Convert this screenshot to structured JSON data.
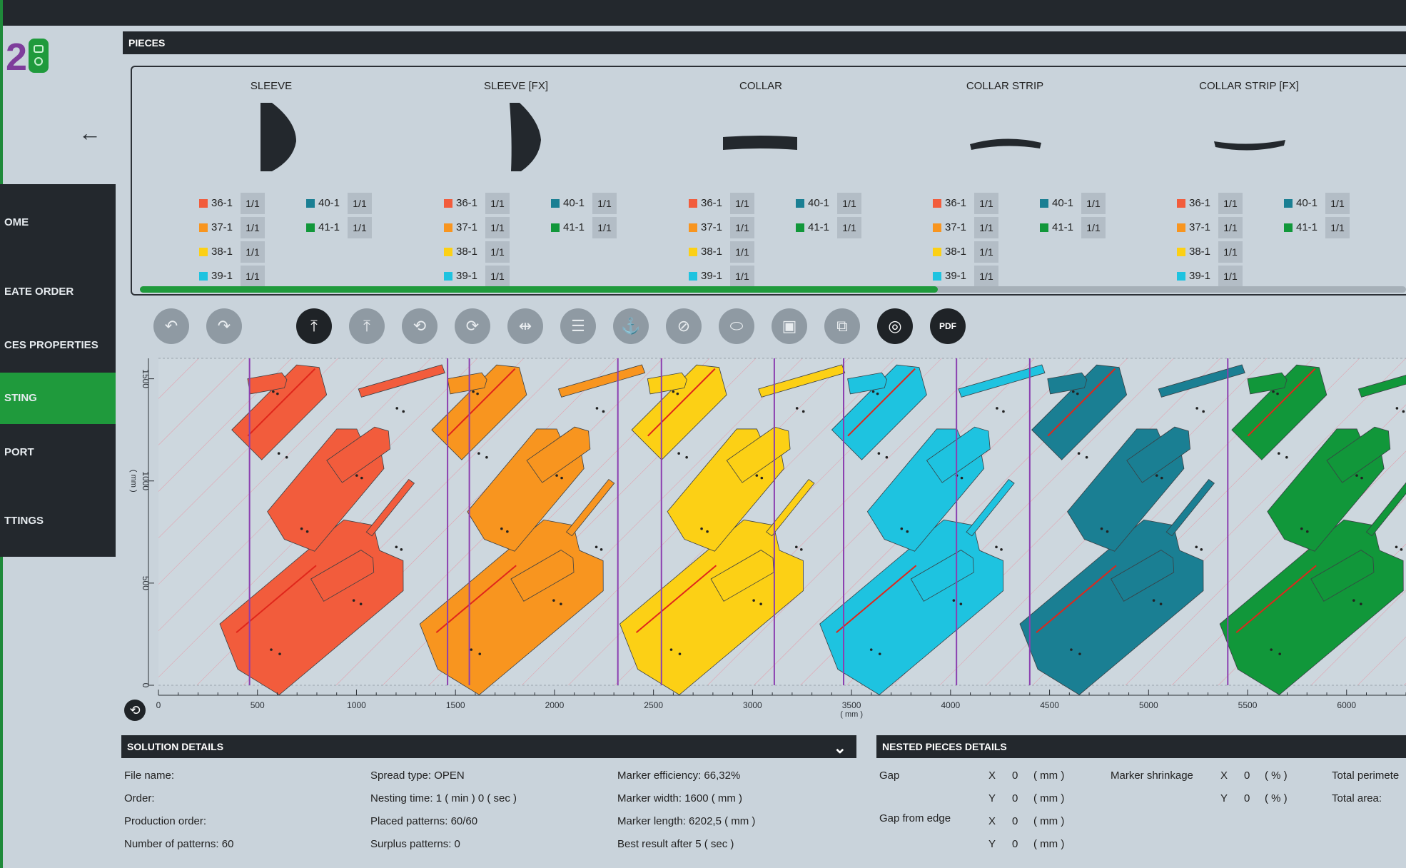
{
  "colors": {
    "dark": "#23282d",
    "accent_green": "#1f9a3c",
    "background": "#c9d3db",
    "size_36": "#f25c3c",
    "size_37": "#f8951f",
    "size_38": "#fcd015",
    "size_39": "#1ec3e0",
    "size_40": "#1a7f93",
    "size_41": "#11973a"
  },
  "logo": {
    "text": "2"
  },
  "nav": {
    "back_icon": "arrow-left-icon",
    "items": [
      {
        "label": "OME",
        "active": false
      },
      {
        "label": "EATE ORDER",
        "active": false
      },
      {
        "label": "CES PROPERTIES",
        "active": false
      },
      {
        "label": "STING",
        "active": true
      },
      {
        "label": "PORT",
        "active": false
      },
      {
        "label": "TTINGS",
        "active": false
      }
    ]
  },
  "pieces": {
    "header": "PIECES",
    "columns": [
      {
        "title": "SLEEVE",
        "sizes": [
          {
            "label": "36-1",
            "count": "1/1"
          },
          {
            "label": "37-1",
            "count": "1/1"
          },
          {
            "label": "38-1",
            "count": "1/1"
          },
          {
            "label": "39-1",
            "count": "1/1"
          },
          {
            "label": "40-1",
            "count": "1/1"
          },
          {
            "label": "41-1",
            "count": "1/1"
          }
        ]
      },
      {
        "title": "SLEEVE [FX]",
        "sizes": [
          {
            "label": "36-1",
            "count": "1/1"
          },
          {
            "label": "37-1",
            "count": "1/1"
          },
          {
            "label": "38-1",
            "count": "1/1"
          },
          {
            "label": "39-1",
            "count": "1/1"
          },
          {
            "label": "40-1",
            "count": "1/1"
          },
          {
            "label": "41-1",
            "count": "1/1"
          }
        ]
      },
      {
        "title": "COLLAR",
        "sizes": [
          {
            "label": "36-1",
            "count": "1/1"
          },
          {
            "label": "37-1",
            "count": "1/1"
          },
          {
            "label": "38-1",
            "count": "1/1"
          },
          {
            "label": "39-1",
            "count": "1/1"
          },
          {
            "label": "40-1",
            "count": "1/1"
          },
          {
            "label": "41-1",
            "count": "1/1"
          }
        ]
      },
      {
        "title": "COLLAR STRIP",
        "sizes": [
          {
            "label": "36-1",
            "count": "1/1"
          },
          {
            "label": "37-1",
            "count": "1/1"
          },
          {
            "label": "38-1",
            "count": "1/1"
          },
          {
            "label": "39-1",
            "count": "1/1"
          },
          {
            "label": "40-1",
            "count": "1/1"
          },
          {
            "label": "41-1",
            "count": "1/1"
          }
        ]
      },
      {
        "title": "COLLAR STRIP [FX]",
        "sizes": [
          {
            "label": "36-1",
            "count": "1/1"
          },
          {
            "label": "37-1",
            "count": "1/1"
          },
          {
            "label": "38-1",
            "count": "1/1"
          },
          {
            "label": "39-1",
            "count": "1/1"
          },
          {
            "label": "40-1",
            "count": "1/1"
          },
          {
            "label": "41-1",
            "count": "1/1"
          }
        ]
      }
    ],
    "progress": 0.63
  },
  "toolbar": {
    "buttons": [
      {
        "icon": "undo-icon",
        "glyph": "↶",
        "dark": false
      },
      {
        "icon": "redo-icon",
        "glyph": "↷",
        "dark": false
      },
      {
        "icon": "upload-icon",
        "glyph": "⤒",
        "dark": true
      },
      {
        "icon": "upload-alt-icon",
        "glyph": "⤒",
        "dark": false
      },
      {
        "icon": "rotate-left-icon",
        "glyph": "⟲",
        "dark": false
      },
      {
        "icon": "rotate-right-icon",
        "glyph": "⟳",
        "dark": false
      },
      {
        "icon": "flip-icon",
        "glyph": "⇹",
        "dark": false
      },
      {
        "icon": "align-icon",
        "glyph": "☰",
        "dark": false
      },
      {
        "icon": "anchor-icon",
        "glyph": "⚓",
        "dark": false
      },
      {
        "icon": "no-anchor-icon",
        "glyph": "⊘",
        "dark": false
      },
      {
        "icon": "shape-icon",
        "glyph": "⬭",
        "dark": false
      },
      {
        "icon": "frame-icon",
        "glyph": "▣",
        "dark": false
      },
      {
        "icon": "group-icon",
        "glyph": "⧉",
        "dark": false
      },
      {
        "icon": "focus-icon",
        "glyph": "◎",
        "dark": true
      },
      {
        "icon": "pdf-icon",
        "glyph": "PDF",
        "dark": true
      }
    ]
  },
  "marker": {
    "x_unit": "( mm )",
    "y_unit": "( mm )",
    "x_ticks": [
      "0",
      "500",
      "1000",
      "1500",
      "2000",
      "2500",
      "3000",
      "3500",
      "4000",
      "4500",
      "5000",
      "5500",
      "6000"
    ],
    "y_ticks": [
      "0",
      "500",
      "1000",
      "1500"
    ],
    "x_range": [
      0,
      6300
    ],
    "y_range": [
      0,
      1600
    ],
    "section_lines": [
      460,
      1460,
      1570,
      2320,
      2540,
      3110,
      3460,
      4030,
      4400,
      5400
    ]
  },
  "solution": {
    "header": "SOLUTION DETAILS",
    "rows": [
      [
        "File name:",
        "Spread type: OPEN",
        "Marker efficiency: 66,32%"
      ],
      [
        "Order:",
        "Nesting time: 1 ( min ) 0 ( sec )",
        "Marker width: 1600 ( mm )"
      ],
      [
        "Production order:",
        "Placed patterns: 60/60",
        "Marker length: 6202,5 ( mm )"
      ],
      [
        "Number of patterns: 60",
        "Surplus patterns: 0",
        "Best result after 5 ( sec )"
      ]
    ]
  },
  "nested": {
    "header": "NESTED PIECES DETAILS",
    "gap_label": "Gap",
    "gap_edge_label": "Gap from edge",
    "x": "X",
    "y": "Y",
    "zero": "0",
    "mm": "( mm )",
    "shrink_label": "Marker shrinkage",
    "pct": "( % )",
    "total_perimeter": "Total perimete",
    "total_area": "Total area:"
  }
}
